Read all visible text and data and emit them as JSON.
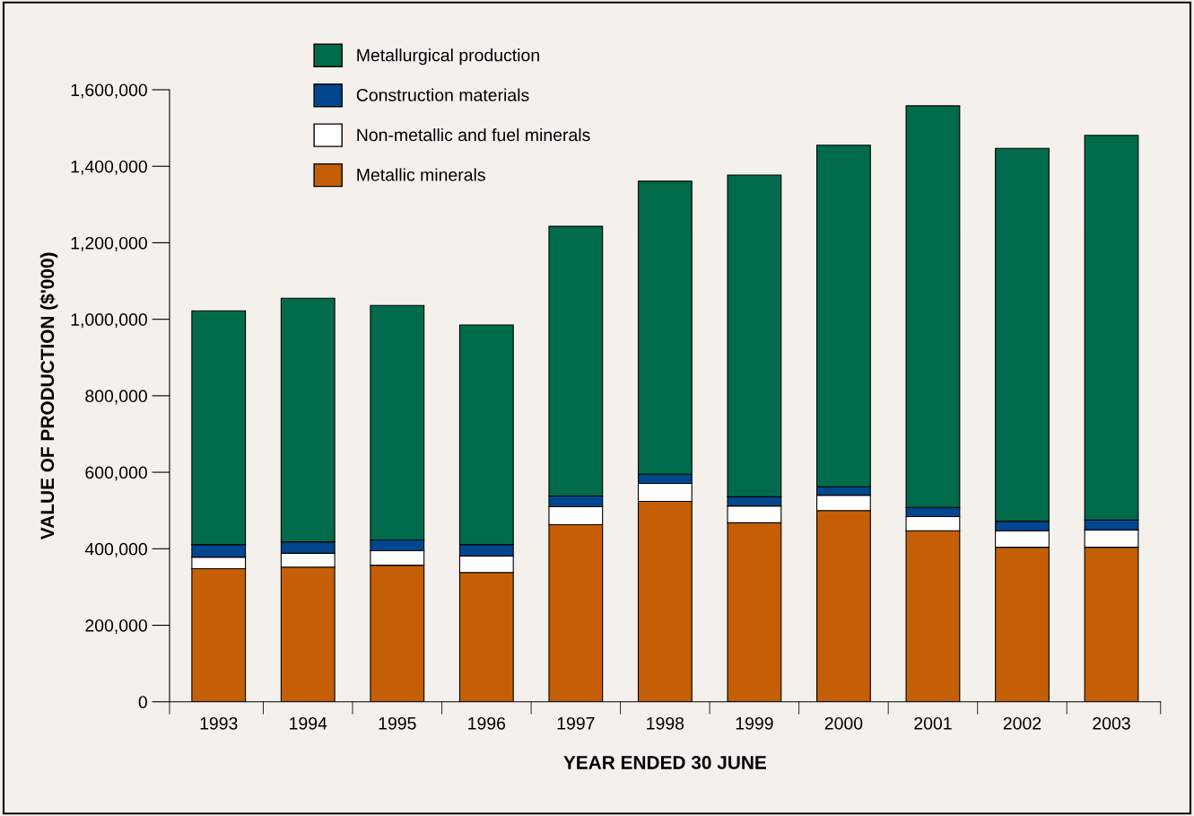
{
  "chart_data": {
    "type": "bar",
    "stacked": true,
    "xlabel": "YEAR ENDED 30 JUNE",
    "ylabel": "VALUE OF PRODUCTION ($'000)",
    "categories": [
      "1993",
      "1994",
      "1995",
      "1996",
      "1997",
      "1998",
      "1999",
      "2000",
      "2001",
      "2002",
      "2003"
    ],
    "series": [
      {
        "name": "Metallic minerals",
        "color": "#c55f05",
        "values": [
          348000,
          352000,
          357000,
          338000,
          463000,
          524000,
          468000,
          500000,
          447000,
          404000,
          404000
        ]
      },
      {
        "name": "Non-metallic and fuel minerals",
        "color": "#ffffff",
        "values": [
          30000,
          36000,
          38000,
          43000,
          47000,
          47000,
          44000,
          40000,
          37000,
          43000,
          45000
        ]
      },
      {
        "name": "Construction materials",
        "color": "#00478f",
        "values": [
          33000,
          30000,
          28000,
          30000,
          28000,
          24000,
          24000,
          22000,
          24000,
          25000,
          26000
        ]
      },
      {
        "name": "Metallurgical production",
        "color": "#006b4a",
        "values": [
          611000,
          637000,
          613000,
          574000,
          705000,
          766000,
          841000,
          893000,
          1050000,
          975000,
          1006000
        ]
      }
    ],
    "ylim": [
      0,
      1600000
    ],
    "yticks": [
      {
        "value": 0,
        "label": "0"
      },
      {
        "value": 200000,
        "label": "200,000"
      },
      {
        "value": 400000,
        "label": "400,000"
      },
      {
        "value": 600000,
        "label": "600,000"
      },
      {
        "value": 800000,
        "label": "800,000"
      },
      {
        "value": 1000000,
        "label": "1,000,000"
      },
      {
        "value": 1200000,
        "label": "1,200,000"
      },
      {
        "value": 1400000,
        "label": "1,400,000"
      },
      {
        "value": 1600000,
        "label": "1,600,000"
      }
    ],
    "grid": false,
    "legend": "top left"
  }
}
